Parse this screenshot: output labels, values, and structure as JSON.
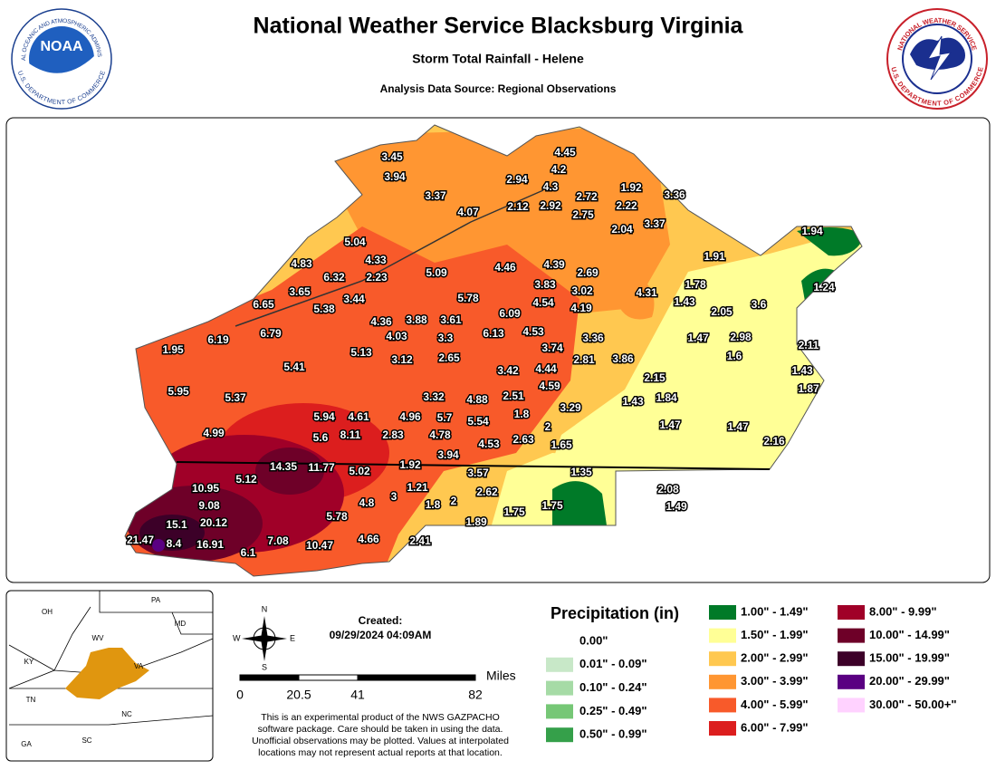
{
  "header": {
    "title": "National Weather Service Blacksburg Virginia",
    "subtitle": "Storm Total Rainfall - Helene",
    "source": "Analysis Data Source: Regional Observations"
  },
  "logos": {
    "noaa_name": "NOAA",
    "noaa_ring_top": "NATIONAL OCEANIC AND ATMOSPHERIC ADMINISTRATION",
    "noaa_ring_bottom": "U.S. DEPARTMENT OF COMMERCE",
    "nws_ring_top": "NATIONAL WEATHER SERVICE",
    "nws_ring_bottom": "U.S. DEPARTMENT OF COMMERCE"
  },
  "map": {
    "rainfall_labels": [
      3.45,
      3.94,
      3.37,
      4.07,
      2.94,
      4.45,
      4.2,
      4.3,
      2.12,
      2.92,
      2.72,
      2.75,
      1.92,
      2.22,
      3.36,
      2.04,
      3.37,
      1.94,
      1.91,
      5.04,
      4.83,
      4.33,
      6.32,
      2.23,
      5.09,
      4.46,
      4.39,
      2.69,
      3.65,
      3.44,
      5.38,
      6.65,
      5.78,
      3.83,
      3.02,
      4.31,
      1.78,
      1.24,
      1.43,
      3.6,
      4.54,
      4.19,
      4.36,
      3.88,
      3.61,
      6.09,
      2.05,
      6.79,
      6.19,
      1.95,
      4.03,
      3.3,
      6.13,
      4.53,
      3.36,
      3.74,
      1.47,
      2.98,
      2.11,
      5.13,
      3.12,
      2.65,
      2.81,
      3.86,
      1.6,
      5.41,
      3.42,
      4.44,
      1.43,
      2.15,
      4.59,
      1.87,
      5.95,
      5.37,
      3.32,
      4.88,
      2.51,
      1.43,
      1.84,
      3.29,
      5.94,
      4.61,
      4.96,
      5.7,
      5.54,
      1.8,
      2,
      1.47,
      1.47,
      4.99,
      5.6,
      8.11,
      2.83,
      4.78,
      2.63,
      4.53,
      1.65,
      2.16,
      3.94,
      14.35,
      11.77,
      5.02,
      1.92,
      3.57,
      1.35,
      5.12,
      10.95,
      1.21,
      3,
      2.62,
      2.08,
      9.08,
      1.8,
      2,
      4.8,
      1.75,
      1.49,
      15.1,
      20.12,
      5.78,
      1.89,
      1.75,
      21.47,
      8.4,
      16.91,
      6.1,
      7.08,
      10.47,
      4.66,
      2.41
    ]
  },
  "inset": {
    "states": [
      "OH",
      "PA",
      "WV",
      "MD",
      "KY",
      "VA",
      "TN",
      "NC",
      "SC",
      "GA"
    ]
  },
  "compass": {
    "n": "N",
    "s": "S",
    "e": "E",
    "w": "W"
  },
  "created": {
    "label": "Created:",
    "timestamp": "09/29/2024 04:09AM"
  },
  "scale": {
    "unit": "Miles",
    "ticks": [
      0,
      20.5,
      41,
      82
    ]
  },
  "disclaimer": [
    "This is an experimental product of the NWS GAZPACHO",
    "software package. Care should be taken in using the data.",
    "Unofficial observations may be plotted. Values at interpolated",
    "locations may not represent actual reports at that location."
  ],
  "legend": {
    "title": "Precipitation (in)",
    "items": [
      {
        "label": "0.00\""
      },
      {
        "label": "0.01\" - 0.09\"",
        "color": "#c8e8c8"
      },
      {
        "label": "0.10\" - 0.24\"",
        "color": "#a6dba6"
      },
      {
        "label": "0.25\" - 0.49\"",
        "color": "#76c776"
      },
      {
        "label": "0.50\" - 0.99\"",
        "color": "#35a04a"
      },
      {
        "label": "1.00\" - 1.49\"",
        "color": "#007a28"
      },
      {
        "label": "1.50\" - 1.99\"",
        "color": "#ffff96"
      },
      {
        "label": "2.00\" - 2.99\"",
        "color": "#ffc850"
      },
      {
        "label": "3.00\" - 3.99\"",
        "color": "#ff9632"
      },
      {
        "label": "4.00\" - 5.99\"",
        "color": "#f85a2a"
      },
      {
        "label": "6.00\" - 7.99\"",
        "color": "#dc1e1e"
      },
      {
        "label": "8.00\" - 9.99\"",
        "color": "#a00028"
      },
      {
        "label": "10.00\" - 14.99\"",
        "color": "#6e0028"
      },
      {
        "label": "15.00\" - 19.99\"",
        "color": "#3c0028"
      },
      {
        "label": "20.00\" - 29.99\"",
        "color": "#5a0082"
      },
      {
        "label": "30.00\" - 50.00+\"",
        "color": "#ffd2ff"
      }
    ]
  }
}
